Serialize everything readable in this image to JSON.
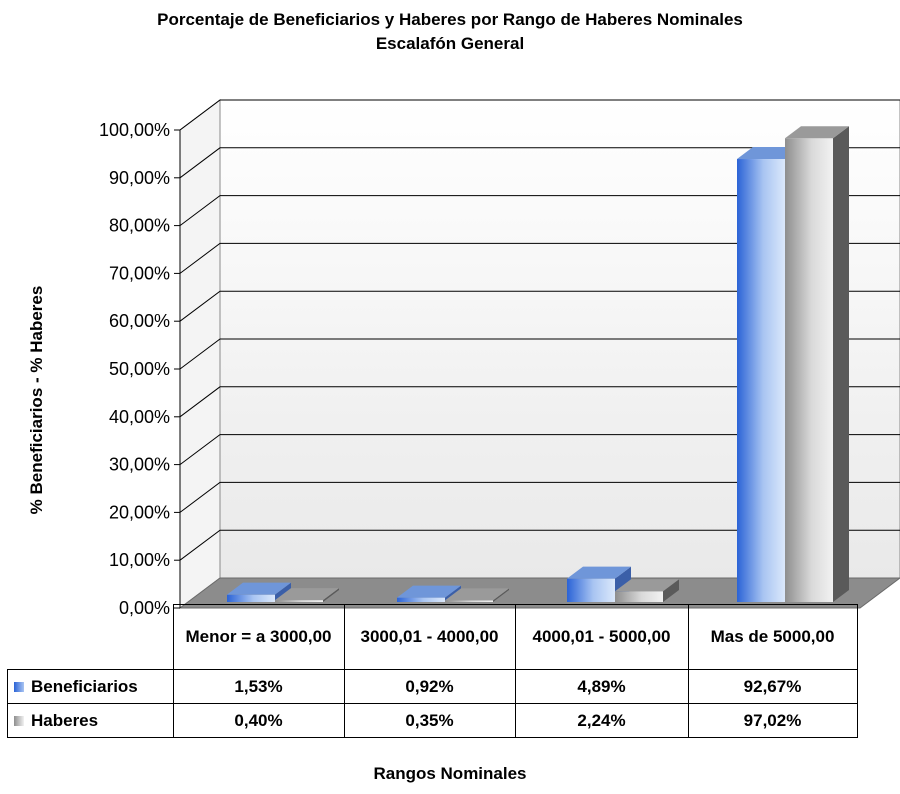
{
  "chart_data": {
    "type": "bar",
    "title": "Porcentaje de Beneficiarios y Haberes por Rango de Haberes Nominales",
    "subtitle": "Escalafón General",
    "xlabel": "Rangos Nominales",
    "ylabel": "% Beneficiarios - % Haberes",
    "ylim": [
      0,
      100
    ],
    "yticks": [
      "0,00%",
      "10,00%",
      "20,00%",
      "30,00%",
      "40,00%",
      "50,00%",
      "60,00%",
      "70,00%",
      "80,00%",
      "90,00%",
      "100,00%"
    ],
    "grid": true,
    "legend": "table",
    "categories": [
      "Menor = a 3000,00",
      "3000,01 - 4000,00",
      "4000,01 - 5000,00",
      "Mas de 5000,00"
    ],
    "series": [
      {
        "name": "Beneficiarios",
        "values": [
          1.53,
          0.92,
          4.89,
          92.67
        ],
        "labels": [
          "1,53%",
          "0,92%",
          "4,89%",
          "92,67%"
        ],
        "color": "#4a7fd8"
      },
      {
        "name": "Haberes",
        "values": [
          0.4,
          0.35,
          2.24,
          97.02
        ],
        "labels": [
          "0,40%",
          "0,35%",
          "2,24%",
          "97,02%"
        ],
        "color": "#b8b8b8"
      }
    ]
  }
}
